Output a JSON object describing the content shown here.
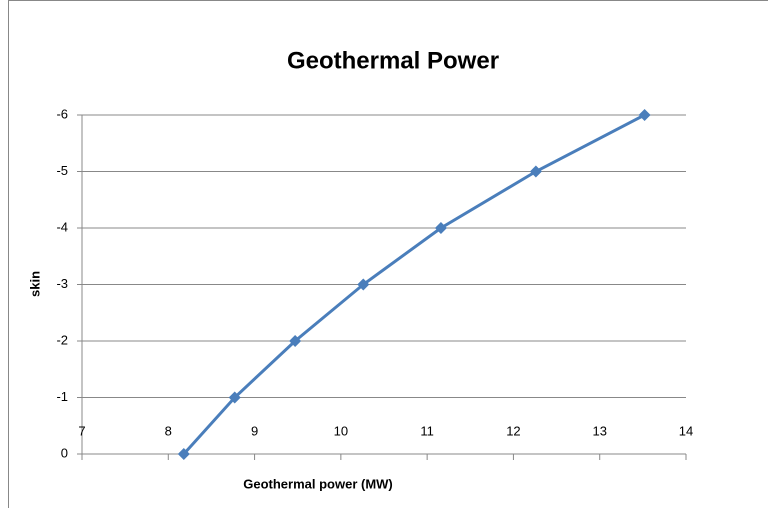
{
  "chart_data": {
    "type": "line",
    "title": "Geothermal Power",
    "x_label": "Geothermal power (MW)",
    "y_label": "skin",
    "x": [
      8.18,
      8.77,
      9.47,
      10.26,
      11.16,
      12.26,
      13.52
    ],
    "values": [
      0,
      -1,
      -2,
      -3,
      -4,
      -5,
      -6
    ],
    "color": "#4a7ebb",
    "xlim": [
      7,
      14
    ],
    "xticks": [
      7,
      8,
      9,
      10,
      11,
      12,
      13,
      14
    ],
    "ylim": [
      0,
      -6
    ],
    "yticks": [
      0,
      -1,
      -2,
      -3,
      -4,
      -5,
      -6
    ],
    "grid": true
  }
}
